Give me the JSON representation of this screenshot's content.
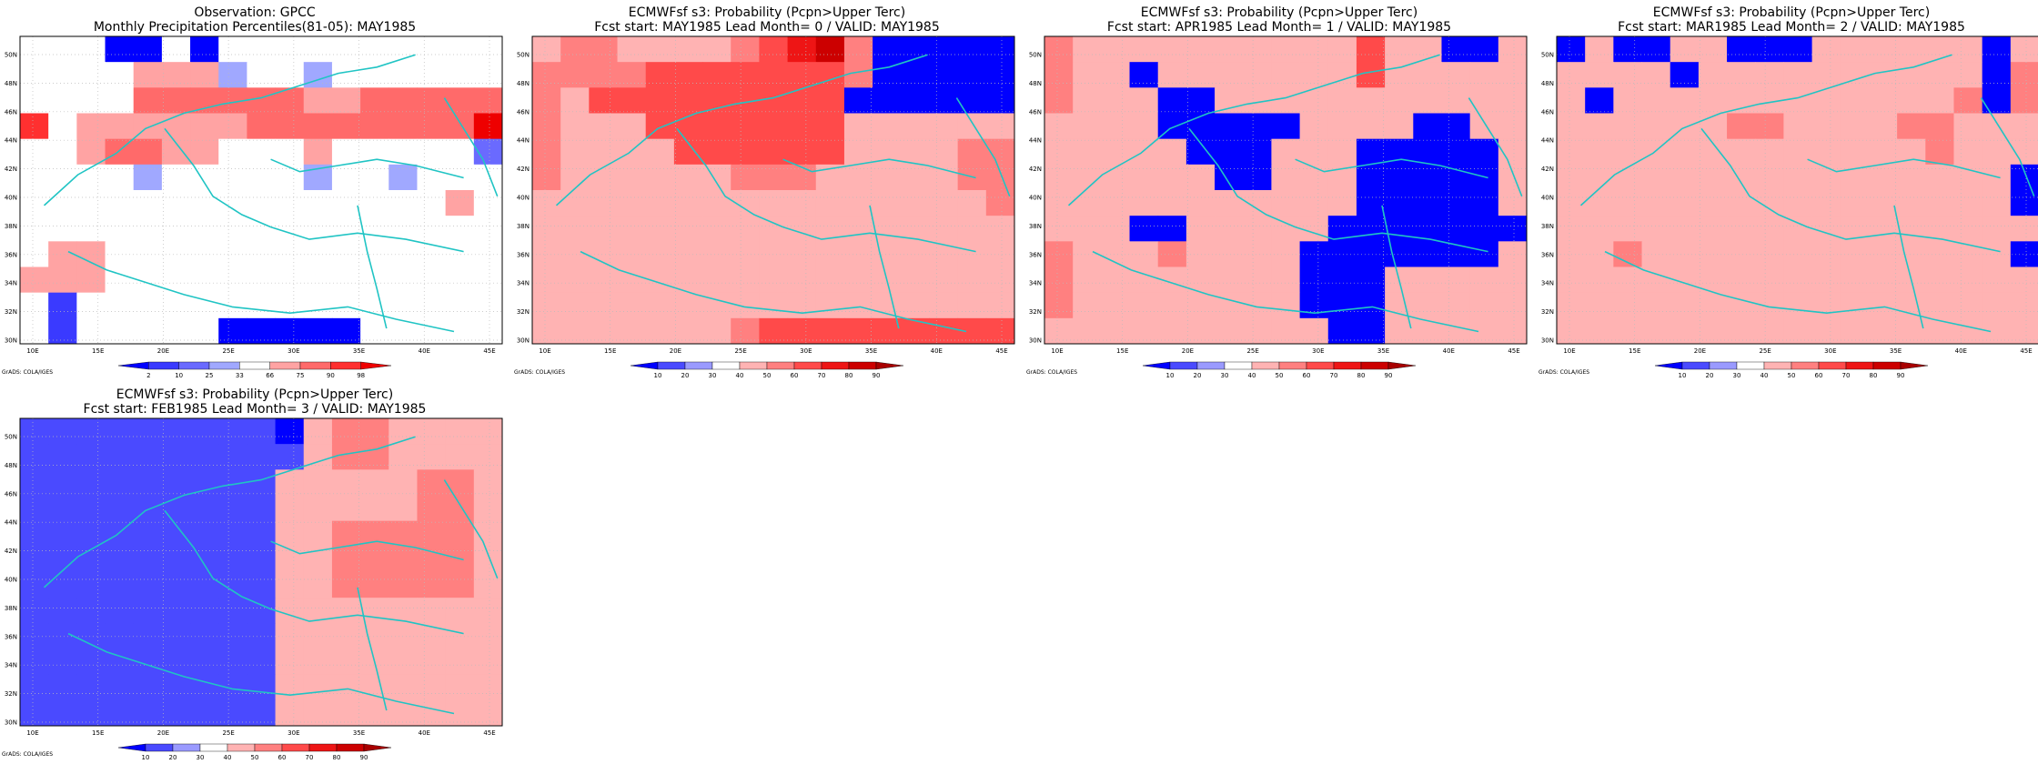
{
  "credit": "GrADS: COLA/IGES",
  "chart_data": [
    {
      "type": "heatmap",
      "title": "Observation: GPCC",
      "subtitle": "Monthly Precipitation Percentiles(81-05): MAY1985",
      "grid": "on",
      "x_ticks": [
        "10E",
        "15E",
        "20E",
        "25E",
        "30E",
        "35E",
        "40E",
        "45E"
      ],
      "y_ticks": [
        "30N",
        "32N",
        "34N",
        "36N",
        "38N",
        "40N",
        "42N",
        "44N",
        "46N",
        "48N",
        "50N"
      ],
      "colorbar": {
        "labels": [
          "2",
          "10",
          "25",
          "33",
          "66",
          "75",
          "90",
          "98"
        ],
        "colors": [
          "#0000ff",
          "#2f2fff",
          "#6a6aff",
          "#9da3ff",
          "#ffffff",
          "#ff9999",
          "#ff5c5c",
          "#ff2222",
          "#ee0000"
        ]
      },
      "values": [
        [
          4,
          4,
          4,
          0,
          0,
          4,
          0,
          4,
          4,
          4,
          4,
          4,
          4,
          4,
          4,
          4,
          4
        ],
        [
          4,
          4,
          4,
          4,
          5,
          5,
          5,
          3,
          4,
          4,
          3,
          4,
          4,
          4,
          4,
          4,
          4
        ],
        [
          4,
          4,
          4,
          4,
          6,
          6,
          6,
          6,
          6,
          6,
          5,
          5,
          6,
          6,
          6,
          6,
          6
        ],
        [
          7,
          4,
          5,
          5,
          5,
          5,
          5,
          5,
          6,
          6,
          6,
          6,
          6,
          6,
          6,
          6,
          8
        ],
        [
          4,
          4,
          5,
          6,
          6,
          5,
          5,
          4,
          4,
          4,
          5,
          4,
          4,
          4,
          4,
          4,
          2
        ],
        [
          4,
          4,
          4,
          4,
          3,
          4,
          4,
          4,
          4,
          4,
          3,
          4,
          4,
          3,
          4,
          4,
          4
        ],
        [
          4,
          4,
          4,
          4,
          4,
          4,
          4,
          4,
          4,
          4,
          4,
          4,
          4,
          4,
          4,
          5,
          4
        ],
        [
          4,
          4,
          4,
          4,
          4,
          4,
          4,
          4,
          4,
          4,
          4,
          4,
          4,
          4,
          4,
          4,
          4
        ],
        [
          4,
          5,
          5,
          4,
          4,
          4,
          4,
          4,
          4,
          4,
          4,
          4,
          4,
          4,
          4,
          4,
          4
        ],
        [
          5,
          5,
          5,
          4,
          4,
          4,
          4,
          4,
          4,
          4,
          4,
          4,
          4,
          4,
          4,
          4,
          4
        ],
        [
          4,
          1,
          4,
          4,
          4,
          4,
          4,
          4,
          4,
          4,
          4,
          4,
          4,
          4,
          4,
          4,
          4
        ],
        [
          4,
          1,
          4,
          4,
          4,
          4,
          4,
          0,
          0,
          0,
          0,
          0,
          4,
          4,
          4,
          4,
          4
        ]
      ]
    },
    {
      "type": "heatmap",
      "title": "ECMWFsf s3: Probability (Pcpn>Upper Terc)",
      "subtitle": "Fcst start: MAY1985   Lead Month= 0 / VALID: MAY1985",
      "grid": "on",
      "x_ticks": [
        "10E",
        "15E",
        "20E",
        "25E",
        "30E",
        "35E",
        "40E",
        "45E"
      ],
      "y_ticks": [
        "30N",
        "32N",
        "34N",
        "36N",
        "38N",
        "40N",
        "42N",
        "44N",
        "46N",
        "48N",
        "50N"
      ],
      "colorbar": {
        "labels": [
          "10",
          "20",
          "30",
          "40",
          "50",
          "60",
          "70",
          "80",
          "90"
        ],
        "colors": [
          "#0000ff",
          "#4a4aff",
          "#9a9aff",
          "#ffffff",
          "#ffb3b3",
          "#ff8080",
          "#ff4a4a",
          "#ee1515",
          "#cc0000",
          "#a80000"
        ]
      },
      "values": [
        [
          4,
          5,
          5,
          4,
          4,
          4,
          4,
          5,
          6,
          7,
          8,
          5,
          0,
          0,
          0,
          0,
          0
        ],
        [
          5,
          5,
          5,
          5,
          6,
          6,
          6,
          6,
          6,
          6,
          6,
          5,
          0,
          0,
          0,
          0,
          0
        ],
        [
          5,
          4,
          6,
          6,
          6,
          6,
          6,
          6,
          6,
          6,
          6,
          0,
          0,
          0,
          0,
          0,
          0
        ],
        [
          5,
          4,
          4,
          4,
          6,
          6,
          6,
          6,
          6,
          6,
          6,
          4,
          4,
          4,
          4,
          4,
          4
        ],
        [
          5,
          4,
          4,
          4,
          4,
          6,
          6,
          6,
          6,
          6,
          6,
          4,
          4,
          4,
          4,
          5,
          5
        ],
        [
          5,
          4,
          4,
          4,
          4,
          4,
          4,
          5,
          5,
          5,
          4,
          4,
          4,
          4,
          4,
          5,
          5
        ],
        [
          4,
          4,
          4,
          4,
          4,
          4,
          4,
          4,
          4,
          4,
          4,
          4,
          4,
          4,
          4,
          4,
          5
        ],
        [
          4,
          4,
          4,
          4,
          4,
          4,
          4,
          4,
          4,
          4,
          4,
          4,
          4,
          4,
          4,
          4,
          4
        ],
        [
          4,
          4,
          4,
          4,
          4,
          4,
          4,
          4,
          4,
          4,
          4,
          4,
          4,
          4,
          4,
          4,
          4
        ],
        [
          4,
          4,
          4,
          4,
          4,
          4,
          4,
          4,
          4,
          4,
          4,
          4,
          4,
          4,
          4,
          4,
          4
        ],
        [
          4,
          4,
          4,
          4,
          4,
          4,
          4,
          4,
          4,
          4,
          4,
          4,
          4,
          4,
          4,
          4,
          4
        ],
        [
          4,
          4,
          4,
          4,
          4,
          4,
          4,
          5,
          6,
          6,
          6,
          6,
          6,
          6,
          6,
          6,
          6
        ]
      ]
    },
    {
      "type": "heatmap",
      "title": "ECMWFsf s3: Probability (Pcpn>Upper Terc)",
      "subtitle": "Fcst start: APR1985   Lead Month= 1 / VALID: MAY1985",
      "grid": "on",
      "x_ticks": [
        "10E",
        "15E",
        "20E",
        "25E",
        "30E",
        "35E",
        "40E",
        "45E"
      ],
      "y_ticks": [
        "30N",
        "32N",
        "34N",
        "36N",
        "38N",
        "40N",
        "42N",
        "44N",
        "46N",
        "48N",
        "50N"
      ],
      "colorbar": {
        "labels": [
          "10",
          "20",
          "30",
          "40",
          "50",
          "60",
          "70",
          "80",
          "90"
        ],
        "colors": [
          "#0000ff",
          "#4a4aff",
          "#9a9aff",
          "#ffffff",
          "#ffb3b3",
          "#ff8080",
          "#ff4a4a",
          "#ee1515",
          "#cc0000",
          "#a80000"
        ]
      },
      "values": [
        [
          5,
          4,
          4,
          4,
          4,
          4,
          4,
          4,
          4,
          4,
          4,
          6,
          4,
          4,
          0,
          0,
          4
        ],
        [
          5,
          4,
          4,
          0,
          4,
          4,
          4,
          4,
          4,
          4,
          4,
          6,
          4,
          4,
          4,
          4,
          4
        ],
        [
          5,
          4,
          4,
          4,
          0,
          0,
          4,
          4,
          4,
          4,
          4,
          4,
          4,
          4,
          4,
          4,
          4
        ],
        [
          4,
          4,
          4,
          4,
          0,
          0,
          0,
          0,
          0,
          4,
          4,
          4,
          4,
          0,
          0,
          4,
          4
        ],
        [
          4,
          4,
          4,
          4,
          4,
          0,
          0,
          0,
          4,
          4,
          4,
          0,
          0,
          0,
          0,
          0,
          4
        ],
        [
          4,
          4,
          4,
          4,
          4,
          4,
          0,
          0,
          4,
          4,
          4,
          0,
          0,
          0,
          0,
          0,
          4
        ],
        [
          4,
          4,
          4,
          4,
          4,
          4,
          4,
          4,
          4,
          4,
          4,
          0,
          0,
          0,
          0,
          0,
          4
        ],
        [
          4,
          4,
          4,
          0,
          0,
          4,
          4,
          4,
          4,
          4,
          0,
          0,
          0,
          0,
          0,
          0,
          0
        ],
        [
          5,
          4,
          4,
          4,
          5,
          4,
          4,
          4,
          4,
          0,
          0,
          0,
          0,
          0,
          0,
          0,
          4
        ],
        [
          5,
          4,
          4,
          4,
          4,
          4,
          4,
          4,
          4,
          0,
          0,
          0,
          4,
          4,
          4,
          4,
          4
        ],
        [
          5,
          4,
          4,
          4,
          4,
          4,
          4,
          4,
          4,
          0,
          0,
          0,
          4,
          4,
          4,
          4,
          4
        ],
        [
          4,
          4,
          4,
          4,
          4,
          4,
          4,
          4,
          4,
          4,
          0,
          0,
          4,
          4,
          4,
          4,
          4
        ]
      ]
    },
    {
      "type": "heatmap",
      "title": "ECMWFsf s3: Probability (Pcpn>Upper Terc)",
      "subtitle": "Fcst start: MAR1985   Lead Month= 2 / VALID: MAY1985",
      "grid": "on",
      "x_ticks": [
        "10E",
        "15E",
        "20E",
        "25E",
        "30E",
        "35E",
        "40E",
        "45E"
      ],
      "y_ticks": [
        "30N",
        "32N",
        "34N",
        "36N",
        "38N",
        "40N",
        "42N",
        "44N",
        "46N",
        "48N",
        "50N"
      ],
      "colorbar": {
        "labels": [
          "10",
          "20",
          "30",
          "40",
          "50",
          "60",
          "70",
          "80",
          "90"
        ],
        "colors": [
          "#0000ff",
          "#4a4aff",
          "#9a9aff",
          "#ffffff",
          "#ffb3b3",
          "#ff8080",
          "#ff4a4a",
          "#ee1515",
          "#cc0000",
          "#a80000"
        ]
      },
      "values": [
        [
          0,
          4,
          0,
          0,
          4,
          4,
          0,
          0,
          0,
          4,
          4,
          4,
          4,
          4,
          4,
          0,
          4
        ],
        [
          4,
          4,
          4,
          4,
          0,
          4,
          4,
          4,
          4,
          4,
          4,
          4,
          4,
          4,
          4,
          0,
          5
        ],
        [
          4,
          0,
          4,
          4,
          4,
          4,
          4,
          4,
          4,
          4,
          4,
          4,
          4,
          4,
          5,
          0,
          5
        ],
        [
          4,
          4,
          4,
          4,
          4,
          4,
          5,
          5,
          4,
          4,
          4,
          4,
          5,
          5,
          4,
          4,
          4
        ],
        [
          4,
          4,
          4,
          4,
          4,
          4,
          4,
          4,
          4,
          4,
          4,
          4,
          4,
          5,
          4,
          4,
          4
        ],
        [
          4,
          4,
          4,
          4,
          4,
          4,
          4,
          4,
          4,
          4,
          4,
          4,
          4,
          4,
          4,
          4,
          0
        ],
        [
          4,
          4,
          4,
          4,
          4,
          4,
          4,
          4,
          4,
          4,
          4,
          4,
          4,
          4,
          4,
          4,
          0
        ],
        [
          4,
          4,
          4,
          4,
          4,
          4,
          4,
          4,
          4,
          4,
          4,
          4,
          4,
          4,
          4,
          4,
          4
        ],
        [
          4,
          4,
          5,
          4,
          4,
          4,
          4,
          4,
          4,
          4,
          4,
          4,
          4,
          4,
          4,
          4,
          0
        ],
        [
          4,
          4,
          4,
          4,
          4,
          4,
          4,
          4,
          4,
          4,
          4,
          4,
          4,
          4,
          4,
          4,
          4
        ],
        [
          4,
          4,
          4,
          4,
          4,
          4,
          4,
          4,
          4,
          4,
          4,
          4,
          4,
          4,
          4,
          4,
          4
        ],
        [
          4,
          4,
          4,
          4,
          4,
          4,
          4,
          4,
          4,
          4,
          4,
          4,
          4,
          4,
          4,
          4,
          4
        ]
      ]
    },
    {
      "type": "heatmap",
      "title": "ECMWFsf s3: Probability (Pcpn>Upper Terc)",
      "subtitle": "Fcst start: FEB1985   Lead Month= 3 / VALID: MAY1985",
      "grid": "on",
      "x_ticks": [
        "10E",
        "15E",
        "20E",
        "25E",
        "30E",
        "35E",
        "40E",
        "45E"
      ],
      "y_ticks": [
        "30N",
        "32N",
        "34N",
        "36N",
        "38N",
        "40N",
        "42N",
        "44N",
        "46N",
        "48N",
        "50N"
      ],
      "colorbar": {
        "labels": [
          "10",
          "20",
          "30",
          "40",
          "50",
          "60",
          "70",
          "80",
          "90"
        ],
        "colors": [
          "#0000ff",
          "#4a4aff",
          "#9a9aff",
          "#ffffff",
          "#ffb3b3",
          "#ff8080",
          "#ff4a4a",
          "#ee1515",
          "#cc0000",
          "#a80000"
        ]
      },
      "values": [
        [
          1,
          1,
          1,
          1,
          1,
          1,
          1,
          1,
          1,
          0,
          4,
          5,
          5,
          4,
          4,
          4,
          4
        ],
        [
          1,
          1,
          1,
          1,
          1,
          1,
          1,
          1,
          1,
          1,
          4,
          5,
          5,
          4,
          4,
          4,
          4
        ],
        [
          1,
          1,
          1,
          1,
          1,
          1,
          1,
          1,
          1,
          4,
          4,
          4,
          4,
          4,
          5,
          5,
          4
        ],
        [
          1,
          1,
          1,
          1,
          1,
          1,
          1,
          1,
          1,
          4,
          4,
          4,
          4,
          4,
          5,
          5,
          4
        ],
        [
          1,
          1,
          1,
          1,
          1,
          1,
          1,
          1,
          1,
          4,
          4,
          5,
          5,
          5,
          5,
          5,
          4
        ],
        [
          1,
          1,
          1,
          1,
          1,
          1,
          1,
          1,
          1,
          4,
          4,
          5,
          5,
          5,
          5,
          5,
          4
        ],
        [
          1,
          1,
          1,
          1,
          1,
          1,
          1,
          1,
          1,
          4,
          4,
          5,
          5,
          5,
          5,
          5,
          4
        ],
        [
          1,
          1,
          1,
          1,
          1,
          1,
          1,
          1,
          1,
          4,
          4,
          4,
          4,
          4,
          4,
          4,
          4
        ],
        [
          1,
          1,
          1,
          1,
          1,
          1,
          1,
          1,
          1,
          4,
          4,
          4,
          4,
          4,
          4,
          4,
          4
        ],
        [
          1,
          1,
          1,
          1,
          1,
          1,
          1,
          1,
          1,
          4,
          4,
          4,
          4,
          4,
          4,
          4,
          4
        ],
        [
          1,
          1,
          1,
          1,
          1,
          1,
          1,
          1,
          1,
          4,
          4,
          4,
          4,
          4,
          4,
          4,
          4
        ],
        [
          1,
          1,
          1,
          1,
          1,
          1,
          1,
          1,
          1,
          4,
          4,
          4,
          4,
          4,
          4,
          4,
          4
        ]
      ]
    }
  ]
}
